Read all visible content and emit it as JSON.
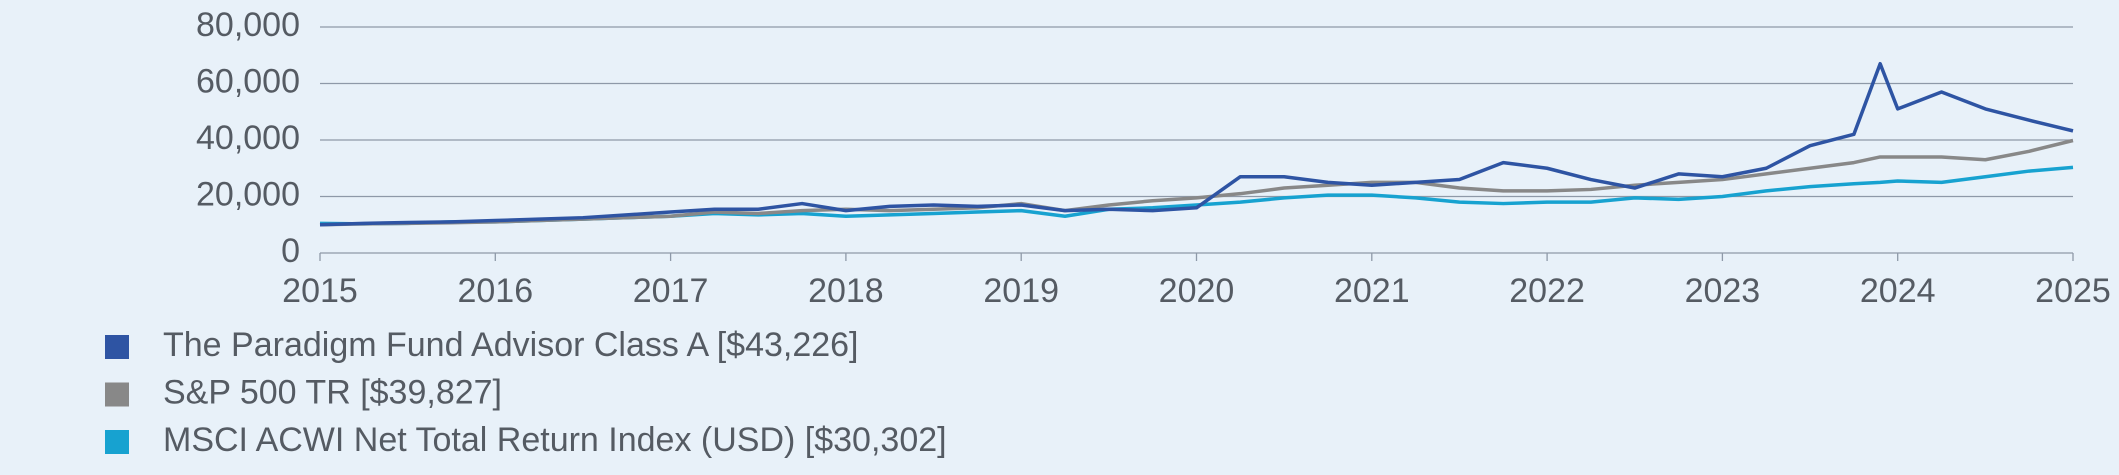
{
  "chart_data": {
    "type": "line",
    "x": [
      2015,
      2015.25,
      2015.5,
      2015.75,
      2016,
      2016.25,
      2016.5,
      2016.75,
      2017,
      2017.25,
      2017.5,
      2017.75,
      2018,
      2018.25,
      2018.5,
      2018.75,
      2019,
      2019.25,
      2019.5,
      2019.75,
      2020,
      2020.25,
      2020.5,
      2020.75,
      2021,
      2021.25,
      2021.5,
      2021.75,
      2022,
      2022.25,
      2022.5,
      2022.75,
      2023,
      2023.25,
      2023.5,
      2023.75,
      2023.9,
      2024,
      2024.25,
      2024.5,
      2024.75,
      2025
    ],
    "series": [
      {
        "name": "The Paradigm Fund Advisor Class A [$43,226]",
        "color": "#2e54a3",
        "values": [
          10000,
          10500,
          10800,
          11000,
          11500,
          12000,
          12500,
          13500,
          14500,
          15500,
          15500,
          17500,
          15000,
          16500,
          17000,
          16500,
          17000,
          15000,
          15500,
          15000,
          16000,
          27000,
          27000,
          25000,
          24000,
          25000,
          26000,
          32000,
          30000,
          26000,
          23000,
          28000,
          27000,
          30000,
          38000,
          42000,
          67000,
          51000,
          57000,
          51000,
          47000,
          43226
        ]
      },
      {
        "name": "S&P 500 TR [$39,827]",
        "color": "#888888",
        "values": [
          10000,
          10300,
          10500,
          10700,
          11000,
          11500,
          12000,
          12500,
          13000,
          14500,
          14000,
          15000,
          15500,
          15000,
          15500,
          16000,
          17500,
          15000,
          17000,
          18500,
          19500,
          21000,
          23000,
          24000,
          25000,
          25000,
          23000,
          22000,
          22000,
          22500,
          24000,
          25000,
          26000,
          28000,
          30000,
          32000,
          34000,
          34000,
          34000,
          33000,
          36000,
          39827
        ]
      },
      {
        "name": "MSCI ACWI Net Total Return Index  (USD) [$30,302]",
        "color": "#17a2d0",
        "values": [
          10500,
          10300,
          10500,
          11000,
          11000,
          11500,
          12000,
          12500,
          13000,
          14000,
          13500,
          14000,
          13000,
          13500,
          14000,
          14500,
          15000,
          13000,
          15500,
          16000,
          17000,
          18000,
          19500,
          20500,
          20500,
          19500,
          18000,
          17500,
          18000,
          18000,
          19500,
          19000,
          20000,
          22000,
          23500,
          24500,
          25000,
          25500,
          25000,
          27000,
          29000,
          30302
        ]
      }
    ],
    "xlim": [
      2015,
      2025
    ],
    "xticks": [
      2015,
      2016,
      2017,
      2018,
      2019,
      2020,
      2021,
      2022,
      2023,
      2024,
      2025
    ],
    "ylim": [
      0,
      80000
    ],
    "yticks": [
      0,
      {
        "value": 20000,
        "label": "20,000"
      },
      {
        "value": 40000,
        "label": "40,000"
      },
      {
        "value": 60000,
        "label": "60,000"
      },
      {
        "value": 80000,
        "label": "80,000"
      }
    ],
    "grid": true
  }
}
